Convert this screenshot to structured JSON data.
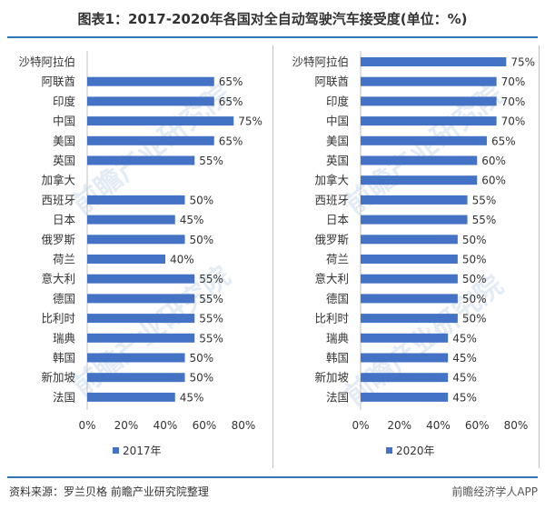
{
  "title": "图表1：2017-2020年各国对全自动驾驶汽车接受度(单位：%)",
  "source": "资料来源：罗兰贝格 前瞻产业研究院整理",
  "watermark_text": "前瞻产业研究院",
  "footer_text": "前瞻经济学人APP",
  "colors": {
    "bar": "#4472c4",
    "rule": "#2e75b6",
    "axis": "#bfbfbf"
  },
  "chart_data": [
    {
      "type": "bar",
      "orientation": "horizontal",
      "legend": {
        "label": "2017年",
        "placement": "bottom-left"
      },
      "series": [
        {
          "name": "2017年",
          "values": [
            null,
            65,
            65,
            75,
            65,
            55,
            null,
            50,
            45,
            50,
            40,
            55,
            55,
            55,
            55,
            50,
            50,
            45
          ]
        }
      ],
      "categories": [
        "沙特阿拉伯",
        "阿联酋",
        "印度",
        "中国",
        "美国",
        "英国",
        "加拿大",
        "西班牙",
        "日本",
        "俄罗斯",
        "荷兰",
        "意大利",
        "德国",
        "比利时",
        "瑞典",
        "韩国",
        "新加坡",
        "法国"
      ],
      "value_labels": [
        "",
        "65%",
        "65%",
        "75%",
        "65%",
        "55%",
        "",
        "50%",
        "45%",
        "50%",
        "40%",
        "55%",
        "55%",
        "55%",
        "55%",
        "50%",
        "50%",
        "45%"
      ],
      "xlim": [
        0,
        80
      ],
      "ticks": [
        "0%",
        "20%",
        "40%",
        "60%",
        "80%"
      ],
      "grid": false
    },
    {
      "type": "bar",
      "orientation": "horizontal",
      "legend": {
        "label": "2020年",
        "placement": "bottom-left"
      },
      "series": [
        {
          "name": "2020年",
          "values": [
            75,
            70,
            70,
            70,
            65,
            60,
            60,
            55,
            55,
            50,
            50,
            50,
            50,
            50,
            45,
            45,
            45,
            45
          ]
        }
      ],
      "categories": [
        "沙特阿拉伯",
        "阿联酋",
        "印度",
        "中国",
        "美国",
        "英国",
        "加拿大",
        "西班牙",
        "日本",
        "俄罗斯",
        "荷兰",
        "意大利",
        "德国",
        "比利时",
        "瑞典",
        "韩国",
        "新加坡",
        "法国"
      ],
      "value_labels": [
        "75%",
        "70%",
        "70%",
        "70%",
        "65%",
        "60%",
        "60%",
        "55%",
        "55%",
        "50%",
        "50%",
        "50%",
        "50%",
        "50%",
        "45%",
        "45%",
        "45%",
        "45%"
      ],
      "xlim": [
        0,
        80
      ],
      "ticks": [
        "0%",
        "20%",
        "40%",
        "60%",
        "80%"
      ],
      "grid": false
    }
  ]
}
